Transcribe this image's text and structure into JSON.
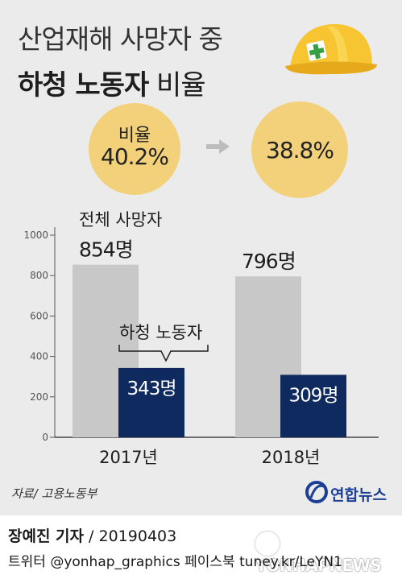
{
  "header": {
    "title_line1": "산업재해 사망자 중",
    "title_line2_bold": "하청 노동자",
    "title_line2_rest": " 비율"
  },
  "ratio": {
    "label": "비율",
    "value_2017": "40.2%",
    "value_2018": "38.8%"
  },
  "chart_data": {
    "type": "bar",
    "categories": [
      "2017년",
      "2018년"
    ],
    "series": [
      {
        "name": "전체 사망자",
        "values": [
          854,
          796
        ]
      },
      {
        "name": "하청 노동자",
        "values": [
          343,
          309
        ]
      }
    ],
    "value_labels_total": [
      "854명",
      "796명"
    ],
    "value_labels_sub": [
      "343명",
      "309명"
    ],
    "yticks": [
      0,
      200,
      400,
      600,
      800,
      1000
    ],
    "ylim": [
      0,
      1000
    ],
    "colors": {
      "total": "#c8c8c8",
      "sub": "#0f2a5e"
    },
    "grid": false
  },
  "footer": {
    "source": "자료/ 고용노동부",
    "logo_text": "연합뉴스",
    "reporter": "장예진 기자",
    "date": " / 20190403",
    "social": "트위터 @yonhap_graphics  페이스북 tuney.kr/LeYN1",
    "watermark": "YONHAPNEWS"
  }
}
